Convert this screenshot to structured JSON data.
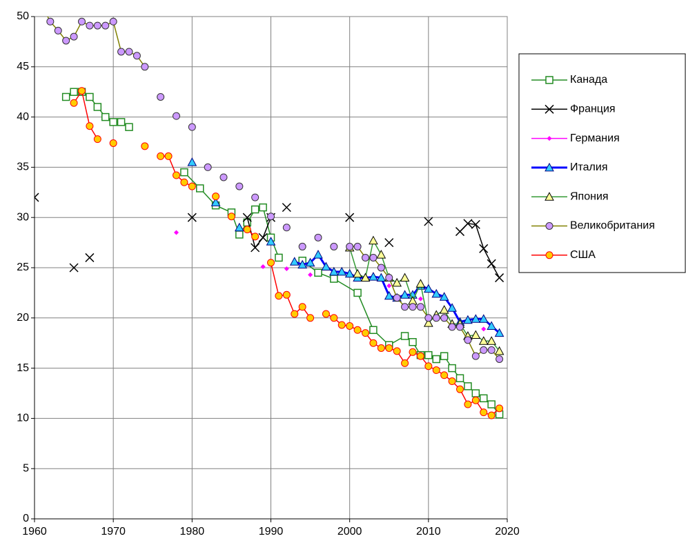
{
  "chart_data": {
    "type": "line",
    "xlim": [
      1960,
      2020
    ],
    "xticks": [
      1960,
      1970,
      1980,
      1990,
      2000,
      2010,
      2020
    ],
    "ylim": [
      0,
      50
    ],
    "yticks": [
      0,
      5,
      10,
      15,
      20,
      25,
      30,
      35,
      40,
      45,
      50
    ],
    "grid": true,
    "legend": "right",
    "series": [
      {
        "name": "Канада",
        "color": "#228b22",
        "marker": "square",
        "x": [
          1964,
          1965,
          1966,
          1967,
          1968,
          1969,
          1970,
          1971,
          1972,
          1973,
          1979,
          1981,
          1983,
          1985,
          1986,
          1987,
          1988,
          1989,
          1990,
          1991,
          1992,
          1994,
          1996,
          1998,
          2001,
          2003,
          2005,
          2007,
          2008,
          2009,
          2010,
          2011,
          2012,
          2013,
          2014,
          2015,
          2016,
          2017,
          2018,
          2019
        ],
        "values": [
          42,
          42.5,
          42.5,
          42,
          41,
          40,
          39.5,
          39.5,
          39,
          null,
          34.5,
          32.9,
          31.2,
          30.5,
          28.3,
          29.5,
          30.8,
          31,
          28,
          26,
          null,
          25.7,
          24.5,
          23.9,
          22.5,
          18.8,
          17.3,
          18.2,
          17.6,
          16.3,
          16.3,
          15.9,
          16.2,
          15,
          14,
          13.2,
          12.5,
          12,
          11.4,
          10.4
        ]
      },
      {
        "name": "Франция",
        "color": "#000000",
        "marker": "x",
        "x": [
          1960,
          1961,
          1965,
          1966,
          1967,
          1968,
          1980,
          1981,
          1987,
          1988,
          1989,
          1990,
          1991,
          1992,
          1993,
          2000,
          2001,
          2005,
          2006,
          2010,
          2011,
          2014,
          2015,
          2016,
          2017,
          2018,
          2019
        ],
        "values": [
          32,
          null,
          25,
          null,
          26,
          null,
          30,
          null,
          30,
          27,
          28,
          30,
          null,
          31,
          null,
          30,
          null,
          27.5,
          null,
          29.6,
          null,
          28.6,
          29.4,
          29.3,
          26.9,
          25.4,
          24
        ]
      },
      {
        "name": "Германия",
        "color": "#ff00ff",
        "marker": "diamond",
        "x": [
          1978,
          1979,
          1989,
          1990,
          1992,
          1993,
          1995,
          1996,
          2005,
          2006,
          2009,
          2010,
          2017
        ],
        "values": [
          28.5,
          null,
          25.1,
          null,
          24.9,
          null,
          24.3,
          null,
          23.2,
          null,
          21.9,
          null,
          18.9
        ]
      },
      {
        "name": "Италия",
        "color": "#0000ff",
        "marker": "triangle",
        "marker_fill": "#33ccff",
        "line_width": 3,
        "x": [
          1980,
          1981,
          1983,
          1984,
          1986,
          1987,
          1990,
          1991,
          1993,
          1994,
          1995,
          1996,
          1997,
          1998,
          1999,
          2000,
          2001,
          2002,
          2003,
          2004,
          2005,
          2006,
          2007,
          2008,
          2009,
          2010,
          2011,
          2012,
          2013,
          2014,
          2015,
          2016,
          2017,
          2018,
          2019
        ],
        "values": [
          35.5,
          null,
          31.5,
          null,
          29,
          null,
          27.6,
          null,
          25.6,
          25.3,
          25.5,
          26.3,
          25.1,
          24.6,
          24.6,
          24.4,
          24,
          24,
          24.1,
          24,
          22.2,
          22,
          22.3,
          22.3,
          23.2,
          22.9,
          22.4,
          22.1,
          21,
          19.6,
          19.8,
          19.9,
          19.9,
          19.2,
          18.5
        ]
      },
      {
        "name": "Япония",
        "color": "#339933",
        "marker": "triangle",
        "marker_fill": "#ffff99",
        "x": [
          2000,
          2001,
          2002,
          2003,
          2004,
          2005,
          2006,
          2007,
          2008,
          2009,
          2010,
          2011,
          2012,
          2013,
          2014,
          2015,
          2016,
          2017,
          2018,
          2019
        ],
        "values": [
          27,
          24.4,
          24,
          27.7,
          26.3,
          24,
          23.5,
          24,
          21.7,
          23.4,
          19.5,
          20.3,
          20.8,
          19.4,
          19.4,
          18.2,
          18.3,
          17.7,
          17.7,
          16.7
        ]
      },
      {
        "name": "Великобритания",
        "color": "#808000",
        "marker": "circle",
        "marker_fill": "#cc99ff",
        "x": [
          1961,
          1962,
          1963,
          1964,
          1965,
          1966,
          1967,
          1968,
          1969,
          1970,
          1971,
          1972,
          1973,
          1974,
          1975,
          1976,
          1977,
          1978,
          1979,
          1980,
          1981,
          1982,
          1983,
          1984,
          1985,
          1986,
          1987,
          1988,
          1989,
          1990,
          1991,
          1992,
          1993,
          1994,
          1995,
          1996,
          1997,
          1998,
          1999,
          2000,
          2001,
          2002,
          2003,
          2004,
          2005,
          2006,
          2007,
          2008,
          2009,
          2010,
          2011,
          2012,
          2013,
          2014,
          2015,
          2016,
          2017,
          2018,
          2019
        ],
        "values": [
          51,
          49.5,
          48.6,
          47.6,
          48,
          49.5,
          49.1,
          49.1,
          49.1,
          49.5,
          46.5,
          46.5,
          46.1,
          45,
          null,
          42,
          null,
          40.1,
          null,
          39,
          null,
          35,
          null,
          34,
          null,
          33.1,
          null,
          32,
          null,
          30.1,
          null,
          29,
          null,
          27.1,
          null,
          28,
          null,
          27.1,
          null,
          27.1,
          27.1,
          26,
          26,
          25,
          24,
          22,
          21.1,
          21.1,
          21.1,
          20,
          20,
          20,
          19.1,
          19.1,
          17.8,
          16.2,
          16.8,
          16.8,
          15.9
        ]
      },
      {
        "name": "США",
        "color": "#ff0000",
        "marker": "circle",
        "marker_fill": "#ffcc00",
        "x": [
          1965,
          1966,
          1967,
          1968,
          1969,
          1970,
          1971,
          1974,
          1975,
          1976,
          1977,
          1978,
          1979,
          1980,
          1981,
          1983,
          1984,
          1985,
          1986,
          1987,
          1988,
          1989,
          1990,
          1991,
          1992,
          1993,
          1994,
          1995,
          1996,
          1997,
          1998,
          1999,
          2000,
          2001,
          2002,
          2003,
          2004,
          2005,
          2006,
          2007,
          2008,
          2009,
          2010,
          2011,
          2012,
          2013,
          2014,
          2015,
          2016,
          2017,
          2018,
          2019
        ],
        "values": [
          41.4,
          42.6,
          39.1,
          37.8,
          null,
          37.4,
          null,
          37.1,
          null,
          36.1,
          36.1,
          34.2,
          33.5,
          33.1,
          null,
          32.1,
          null,
          30.1,
          null,
          28.8,
          28.1,
          null,
          25.5,
          22.2,
          22.3,
          20.4,
          21.1,
          20,
          null,
          20.4,
          20,
          19.3,
          19.2,
          18.8,
          18.5,
          17.5,
          17,
          17,
          16.7,
          15.5,
          16.6,
          16.2,
          15.2,
          14.8,
          14.3,
          13.7,
          12.9,
          11.4,
          11.8,
          10.6,
          10.3,
          11
        ]
      }
    ]
  }
}
